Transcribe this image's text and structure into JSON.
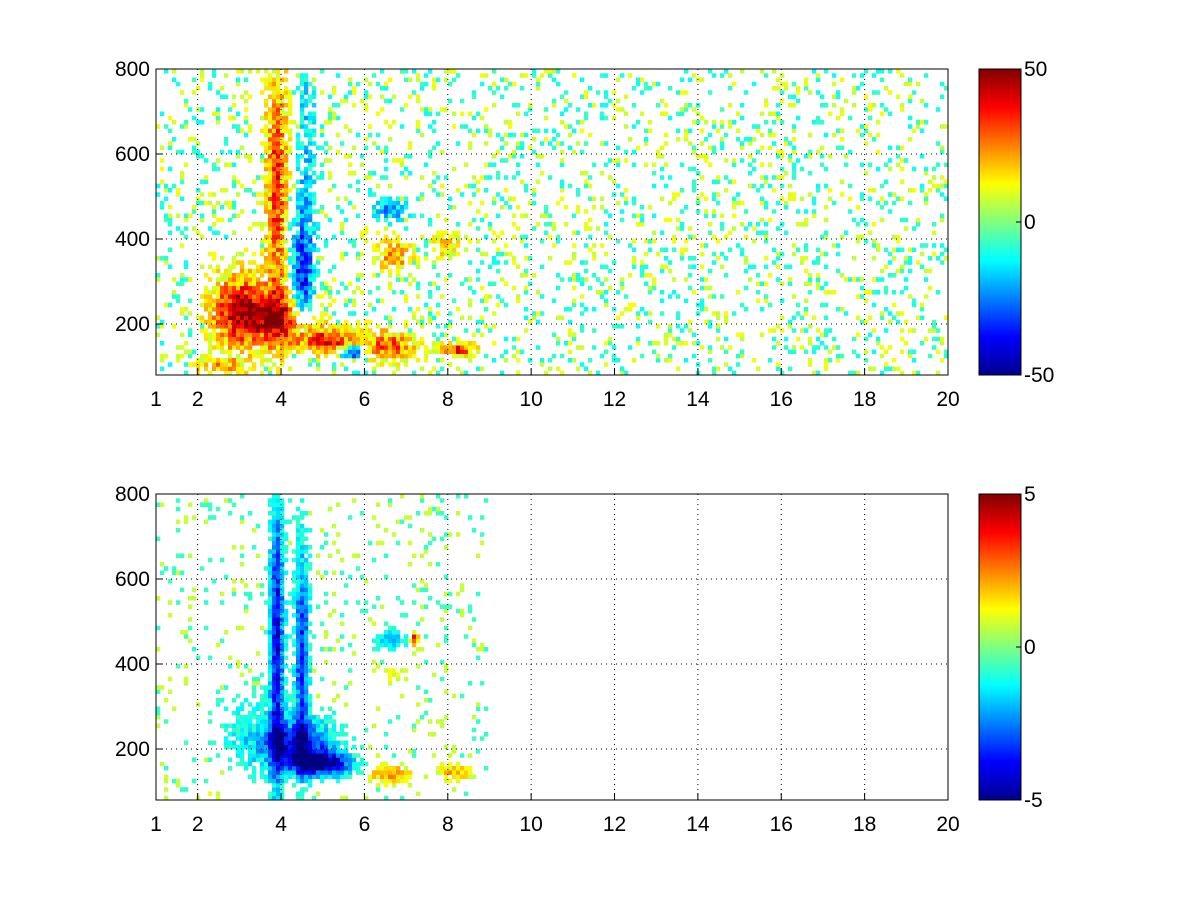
{
  "chart_data": [
    {
      "type": "heatmap",
      "title": "",
      "xlabel": "",
      "ylabel": "",
      "xlim": [
        1,
        20
      ],
      "ylim": [
        80,
        800
      ],
      "xticks": [
        "1",
        "2",
        "4",
        "6",
        "8",
        "10",
        "12",
        "14",
        "16",
        "18",
        "20"
      ],
      "xtick_values": [
        1,
        2,
        4,
        6,
        8,
        10,
        12,
        14,
        16,
        18,
        20
      ],
      "yticks": [
        "200",
        "400",
        "600",
        "800"
      ],
      "ytick_values": [
        200,
        400,
        600,
        800
      ],
      "grid": true,
      "colormap": "jet",
      "clim": [
        -50,
        50
      ],
      "colorbar_ticks": [
        "50",
        "0",
        "-50"
      ],
      "colorbar_tick_values": [
        50,
        0,
        -50
      ],
      "blobs": [
        {
          "x": 3.9,
          "y": 520,
          "sx": 0.18,
          "sy": 230,
          "value": 32
        },
        {
          "x": 3.0,
          "y": 230,
          "sx": 0.45,
          "sy": 60,
          "value": 42
        },
        {
          "x": 4.0,
          "y": 215,
          "sx": 0.55,
          "sy": 40,
          "value": 35
        },
        {
          "x": 5.0,
          "y": 160,
          "sx": 0.55,
          "sy": 20,
          "value": 40
        },
        {
          "x": 5.7,
          "y": 135,
          "sx": 0.2,
          "sy": 10,
          "value": -42
        },
        {
          "x": 4.5,
          "y": 300,
          "sx": 0.2,
          "sy": 100,
          "value": -30
        },
        {
          "x": 4.6,
          "y": 560,
          "sx": 0.15,
          "sy": 200,
          "value": -15
        },
        {
          "x": 6.6,
          "y": 470,
          "sx": 0.25,
          "sy": 18,
          "value": -25
        },
        {
          "x": 6.7,
          "y": 360,
          "sx": 0.3,
          "sy": 25,
          "value": 22
        },
        {
          "x": 6.6,
          "y": 150,
          "sx": 0.4,
          "sy": 25,
          "value": 30
        },
        {
          "x": 8.2,
          "y": 140,
          "sx": 0.3,
          "sy": 12,
          "value": 35
        },
        {
          "x": 8.0,
          "y": 390,
          "sx": 0.25,
          "sy": 25,
          "value": 15
        },
        {
          "x": 2.6,
          "y": 100,
          "sx": 0.4,
          "sy": 15,
          "value": 18
        }
      ],
      "noise": {
        "amplitude": 12,
        "x_end": 20
      }
    },
    {
      "type": "heatmap",
      "title": "",
      "xlabel": "",
      "ylabel": "",
      "xlim": [
        1,
        20
      ],
      "ylim": [
        80,
        800
      ],
      "xticks": [
        "1",
        "2",
        "4",
        "6",
        "8",
        "10",
        "12",
        "14",
        "16",
        "18",
        "20"
      ],
      "xtick_values": [
        1,
        2,
        4,
        6,
        8,
        10,
        12,
        14,
        16,
        18,
        20
      ],
      "yticks": [
        "200",
        "400",
        "600",
        "800"
      ],
      "ytick_values": [
        200,
        400,
        600,
        800
      ],
      "grid": true,
      "colormap": "jet",
      "clim": [
        -5,
        5
      ],
      "colorbar_ticks": [
        "5",
        "0",
        "-5"
      ],
      "colorbar_tick_values": [
        5,
        0,
        -5
      ],
      "blobs": [
        {
          "x": 3.9,
          "y": 450,
          "sx": 0.12,
          "sy": 250,
          "value": -4
        },
        {
          "x": 4.5,
          "y": 420,
          "sx": 0.12,
          "sy": 180,
          "value": -3.5
        },
        {
          "x": 4.4,
          "y": 210,
          "sx": 0.6,
          "sy": 40,
          "value": -4
        },
        {
          "x": 3.2,
          "y": 240,
          "sx": 0.45,
          "sy": 60,
          "value": -1
        },
        {
          "x": 5.0,
          "y": 165,
          "sx": 0.5,
          "sy": 18,
          "value": -4.5
        },
        {
          "x": 6.6,
          "y": 460,
          "sx": 0.25,
          "sy": 15,
          "value": -2
        },
        {
          "x": 7.2,
          "y": 460,
          "sx": 0.06,
          "sy": 10,
          "value": 4
        },
        {
          "x": 6.7,
          "y": 375,
          "sx": 0.3,
          "sy": 20,
          "value": 0.5
        },
        {
          "x": 6.6,
          "y": 140,
          "sx": 0.35,
          "sy": 15,
          "value": 2.5
        },
        {
          "x": 8.2,
          "y": 145,
          "sx": 0.3,
          "sy": 12,
          "value": 2
        },
        {
          "x": 2.3,
          "y": 95,
          "sx": 0.2,
          "sy": 10,
          "value": 0.5
        }
      ],
      "noise": {
        "amplitude": 0.8,
        "x_end": 9
      }
    }
  ]
}
